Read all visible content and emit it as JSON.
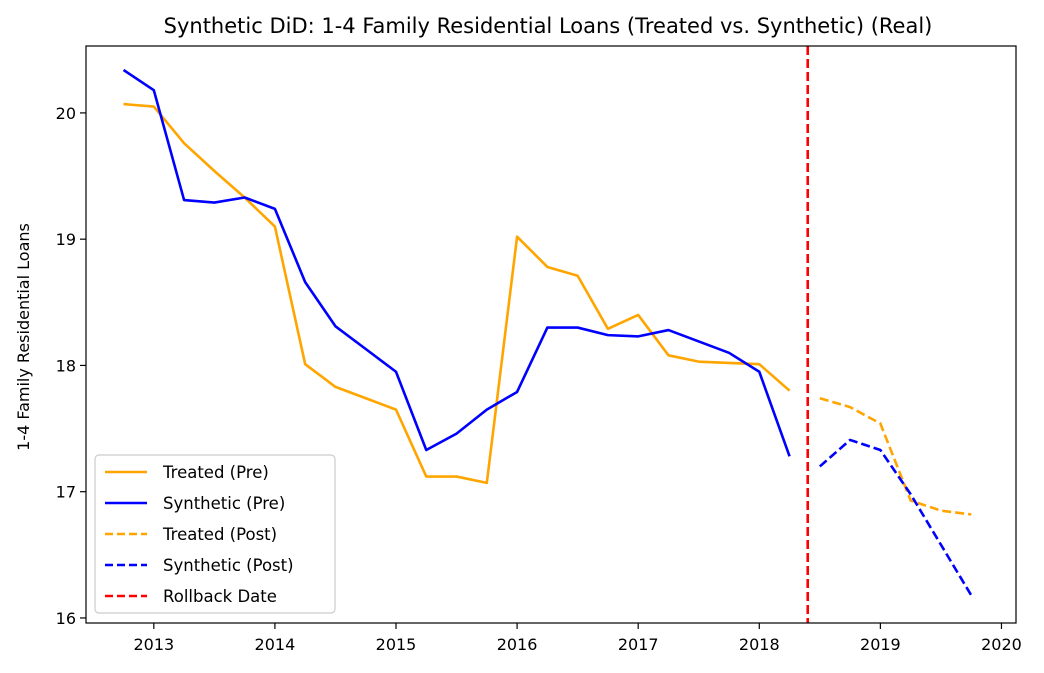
{
  "chart_data": {
    "type": "line",
    "title": "Synthetic DiD: 1-4 Family Residential Loans (Treated vs. Synthetic) (Real)",
    "xlabel": "",
    "ylabel": "1-4 Family Residential Loans",
    "xlim": [
      2012.44,
      2020.12
    ],
    "ylim": [
      15.96,
      20.53
    ],
    "x_ticks": [
      "2013",
      "2014",
      "2015",
      "2016",
      "2017",
      "2018",
      "2019",
      "2020"
    ],
    "x_tick_values": [
      2013,
      2014,
      2015,
      2016,
      2017,
      2018,
      2019,
      2020
    ],
    "y_ticks": [
      "16",
      "17",
      "18",
      "19",
      "20"
    ],
    "y_tick_values": [
      16,
      17,
      18,
      19,
      20
    ],
    "grid": false,
    "legend_position": "lower-left",
    "series": [
      {
        "name": "Treated (Pre)",
        "color": "#ffa500",
        "style": "solid",
        "x": [
          2012.75,
          2013.0,
          2013.25,
          2013.5,
          2013.75,
          2014.0,
          2014.25,
          2014.5,
          2014.75,
          2015.0,
          2015.25,
          2015.5,
          2015.75,
          2016.0,
          2016.25,
          2016.5,
          2016.75,
          2017.0,
          2017.25,
          2017.5,
          2017.75,
          2018.0,
          2018.25
        ],
        "values": [
          20.07,
          20.05,
          19.76,
          19.54,
          19.33,
          19.1,
          18.01,
          17.83,
          17.74,
          17.65,
          17.12,
          17.12,
          17.07,
          19.02,
          18.78,
          18.71,
          18.29,
          18.4,
          18.08,
          18.03,
          18.02,
          18.01,
          17.8
        ]
      },
      {
        "name": "Synthetic (Pre)",
        "color": "#0000ff",
        "style": "solid",
        "x": [
          2012.75,
          2013.0,
          2013.25,
          2013.5,
          2013.75,
          2014.0,
          2014.25,
          2014.5,
          2014.75,
          2015.0,
          2015.25,
          2015.5,
          2015.75,
          2016.0,
          2016.25,
          2016.5,
          2016.75,
          2017.0,
          2017.25,
          2017.5,
          2017.75,
          2018.0,
          2018.25
        ],
        "values": [
          20.34,
          20.18,
          19.31,
          19.29,
          19.33,
          19.24,
          18.66,
          18.31,
          18.13,
          17.95,
          17.33,
          17.46,
          17.65,
          17.79,
          18.3,
          18.3,
          18.24,
          18.23,
          18.28,
          18.19,
          18.1,
          17.95,
          17.28
        ]
      },
      {
        "name": "Treated (Post)",
        "color": "#ffa500",
        "style": "dashed",
        "x": [
          2018.5,
          2018.75,
          2019.0,
          2019.25,
          2019.5,
          2019.75
        ],
        "values": [
          17.74,
          17.67,
          17.54,
          16.93,
          16.85,
          16.82
        ]
      },
      {
        "name": "Synthetic (Post)",
        "color": "#0000ff",
        "style": "dashed",
        "x": [
          2018.5,
          2018.75,
          2019.0,
          2019.25,
          2019.5,
          2019.75
        ],
        "values": [
          17.2,
          17.41,
          17.33,
          16.98,
          16.58,
          16.18
        ]
      }
    ],
    "vlines": [
      {
        "name": "Rollback Date",
        "x": 2018.4,
        "color": "#ff0000",
        "style": "dashed"
      }
    ],
    "legend": [
      "Treated (Pre)",
      "Synthetic (Pre)",
      "Treated (Post)",
      "Synthetic (Post)",
      "Rollback Date"
    ]
  }
}
